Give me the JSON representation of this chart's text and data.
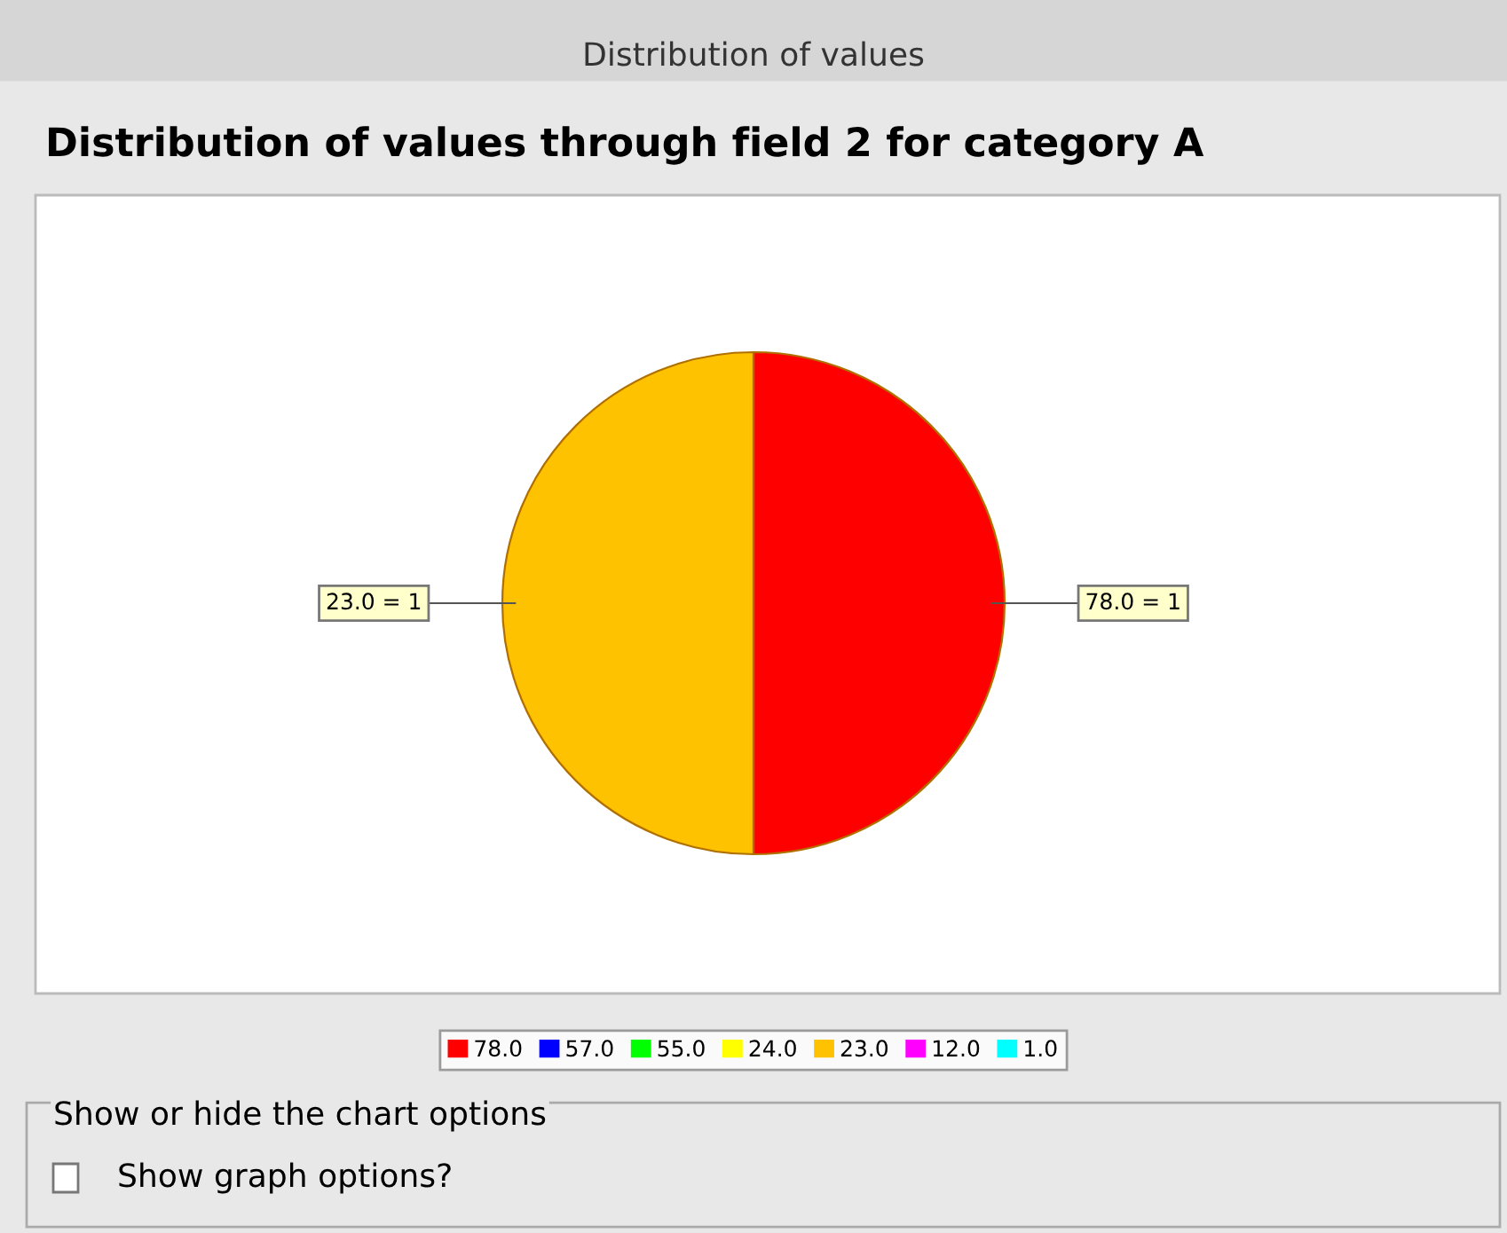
{
  "chart_data": {
    "type": "pie",
    "title": "Distribution of values through field 2 for category A",
    "categories": [
      "78.0",
      "57.0",
      "55.0",
      "24.0",
      "23.0",
      "12.0",
      "1.0"
    ],
    "values": [
      1,
      0,
      0,
      0,
      1,
      0,
      0
    ],
    "colors": [
      "#ff0000",
      "#0000ff",
      "#00ff00",
      "#ffff00",
      "#ffc200",
      "#ff00ff",
      "#00ffff"
    ],
    "value_labels": [
      "78.0 = 1",
      null,
      null,
      null,
      "23.0 = 1",
      null,
      null
    ],
    "legend": "bottom",
    "annotations": [
      "Distribution of values",
      "Show or hide the chart options",
      "Show graph options?"
    ]
  }
}
